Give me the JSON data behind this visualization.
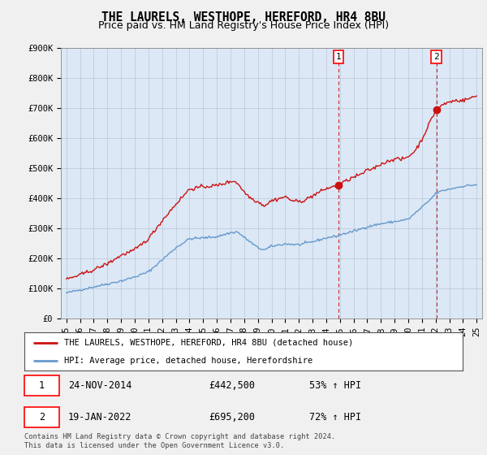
{
  "title": "THE LAURELS, WESTHOPE, HEREFORD, HR4 8BU",
  "subtitle": "Price paid vs. HM Land Registry's House Price Index (HPI)",
  "ylim": [
    0,
    900000
  ],
  "yticks": [
    0,
    100000,
    200000,
    300000,
    400000,
    500000,
    600000,
    700000,
    800000,
    900000
  ],
  "ytick_labels": [
    "£0",
    "£100K",
    "£200K",
    "£300K",
    "£400K",
    "£500K",
    "£600K",
    "£700K",
    "£800K",
    "£900K"
  ],
  "hpi_color": "#6699cc",
  "price_color": "#cc1111",
  "vline_color": "#cc1111",
  "shade_color": "#dce8f5",
  "sale1_date_num": 2014.9,
  "sale1_price": 442500,
  "sale1_label": "1",
  "sale2_date_num": 2022.05,
  "sale2_price": 695200,
  "sale2_label": "2",
  "legend1": "THE LAURELS, WESTHOPE, HEREFORD, HR4 8BU (detached house)",
  "legend2": "HPI: Average price, detached house, Herefordshire",
  "footer": "Contains HM Land Registry data © Crown copyright and database right 2024.\nThis data is licensed under the Open Government Licence v3.0.",
  "fig_bg_color": "#f0f0f0",
  "plot_bg_color": "#dce8f5",
  "title_fontsize": 10.5,
  "subtitle_fontsize": 9,
  "tick_fontsize": 7.5,
  "hpi_anchors_t": [
    1995.0,
    1996.0,
    1997.0,
    1998.0,
    1999.0,
    2000.0,
    2001.0,
    2002.0,
    2003.0,
    2004.0,
    2005.0,
    2006.0,
    2007.0,
    2007.5,
    2008.0,
    2009.0,
    2009.5,
    2010.0,
    2011.0,
    2012.0,
    2013.0,
    2014.0,
    2014.9,
    2015.0,
    2016.0,
    2017.0,
    2018.0,
    2019.0,
    2020.0,
    2021.0,
    2021.5,
    2022.0,
    2022.5,
    2023.0,
    2023.5,
    2024.0,
    2025.0
  ],
  "hpi_anchors_v": [
    85000,
    95000,
    105000,
    115000,
    125000,
    138000,
    155000,
    195000,
    235000,
    265000,
    268000,
    272000,
    285000,
    288000,
    270000,
    235000,
    228000,
    240000,
    248000,
    245000,
    255000,
    268000,
    275000,
    278000,
    290000,
    305000,
    315000,
    322000,
    330000,
    370000,
    390000,
    415000,
    425000,
    430000,
    435000,
    440000,
    445000
  ],
  "price_anchors_t": [
    1995.0,
    1996.0,
    1997.0,
    1998.0,
    1999.0,
    2000.0,
    2001.0,
    2002.0,
    2003.0,
    2004.0,
    2005.0,
    2006.0,
    2007.0,
    2007.3,
    2007.7,
    2008.0,
    2008.5,
    2009.0,
    2009.5,
    2010.0,
    2010.5,
    2011.0,
    2011.5,
    2012.0,
    2012.5,
    2013.0,
    2013.5,
    2014.0,
    2014.9,
    2015.0,
    2015.5,
    2016.0,
    2016.5,
    2017.0,
    2017.5,
    2018.0,
    2018.5,
    2019.0,
    2019.5,
    2020.0,
    2020.5,
    2021.0,
    2021.5,
    2022.05,
    2022.5,
    2023.0,
    2023.5,
    2024.0,
    2024.5,
    2025.0
  ],
  "price_anchors_v": [
    130000,
    145000,
    162000,
    182000,
    210000,
    228000,
    265000,
    325000,
    380000,
    430000,
    438000,
    442000,
    455000,
    458000,
    440000,
    420000,
    400000,
    388000,
    375000,
    392000,
    398000,
    405000,
    392000,
    388000,
    395000,
    408000,
    420000,
    432000,
    442500,
    448000,
    458000,
    470000,
    478000,
    492000,
    500000,
    514000,
    522000,
    532000,
    528000,
    538000,
    558000,
    595000,
    645000,
    695200,
    710000,
    720000,
    725000,
    725000,
    732000,
    740000
  ]
}
